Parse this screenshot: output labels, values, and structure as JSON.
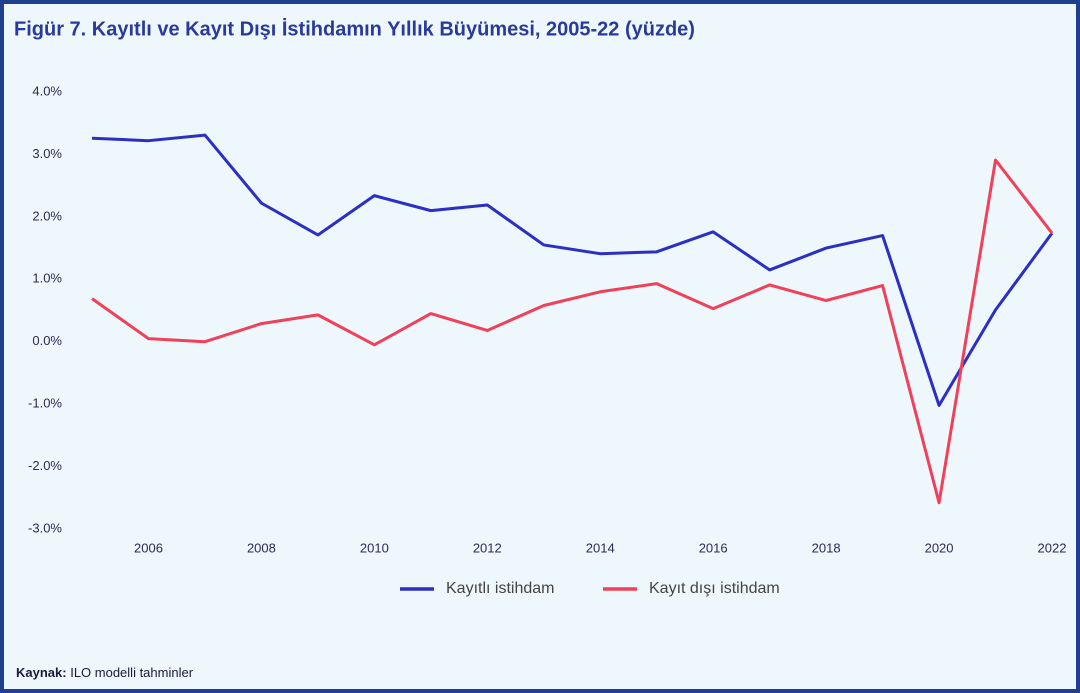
{
  "chart_data": {
    "type": "line",
    "title": "Figür 7. Kayıtlı ve Kayıt Dışı İstihdamın Yıllık Büyümesi, 2005-22 (yüzde)",
    "x": [
      2005,
      2006,
      2007,
      2008,
      2009,
      2010,
      2011,
      2012,
      2013,
      2014,
      2015,
      2016,
      2017,
      2018,
      2019,
      2020,
      2021,
      2022
    ],
    "series": [
      {
        "name": "Kayıtlı istihdam",
        "color": "#2b2fc4",
        "values": [
          3.26,
          3.22,
          3.31,
          2.22,
          1.71,
          2.34,
          2.1,
          2.19,
          1.55,
          1.41,
          1.44,
          1.76,
          1.15,
          1.5,
          1.7,
          -1.02,
          0.51,
          1.74
        ]
      },
      {
        "name": "Kayıt dışı istihdam",
        "color": "#f0405a",
        "values": [
          0.69,
          0.05,
          0.0,
          0.29,
          0.43,
          -0.05,
          0.45,
          0.18,
          0.58,
          0.8,
          0.93,
          0.53,
          0.91,
          0.66,
          0.9,
          -2.58,
          2.91,
          1.74
        ]
      }
    ],
    "xlim": [
      2005,
      2022
    ],
    "xticks": [
      2006,
      2008,
      2010,
      2012,
      2014,
      2016,
      2018,
      2020,
      2022
    ],
    "ylim": [
      -3,
      4
    ],
    "yticks": [
      {
        "value": 4,
        "label": "4.0%"
      },
      {
        "value": 3,
        "label": "3.0%"
      },
      {
        "value": 2,
        "label": "2.0%"
      },
      {
        "value": 1,
        "label": "1.0%"
      },
      {
        "value": 0,
        "label": "0.0%"
      },
      {
        "value": -1,
        "label": "-1.0%"
      },
      {
        "value": -2,
        "label": "-2.0%"
      },
      {
        "value": -3,
        "label": "-3.0%"
      }
    ],
    "grid": false,
    "legend": "bottom",
    "source": {
      "label": "Kaynak:",
      "text": "ILO modelli tahminler"
    }
  }
}
